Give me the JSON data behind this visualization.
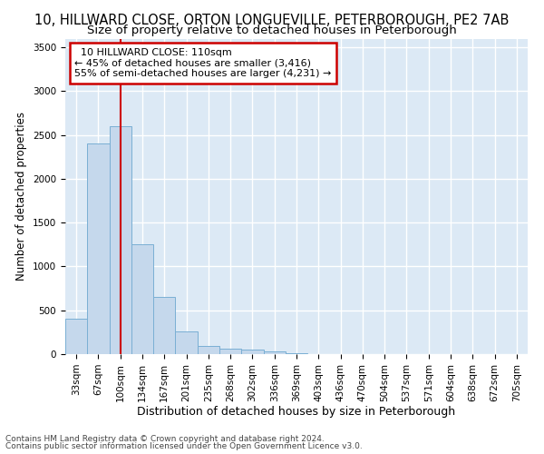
{
  "title": "10, HILLWARD CLOSE, ORTON LONGUEVILLE, PETERBOROUGH, PE2 7AB",
  "subtitle": "Size of property relative to detached houses in Peterborough",
  "xlabel": "Distribution of detached houses by size in Peterborough",
  "ylabel": "Number of detached properties",
  "categories": [
    "33sqm",
    "67sqm",
    "100sqm",
    "134sqm",
    "167sqm",
    "201sqm",
    "235sqm",
    "268sqm",
    "302sqm",
    "336sqm",
    "369sqm",
    "403sqm",
    "436sqm",
    "470sqm",
    "504sqm",
    "537sqm",
    "571sqm",
    "604sqm",
    "638sqm",
    "672sqm",
    "705sqm"
  ],
  "values": [
    400,
    2400,
    2600,
    1250,
    650,
    260,
    95,
    60,
    50,
    35,
    10,
    5,
    0,
    0,
    0,
    0,
    0,
    0,
    0,
    0,
    0
  ],
  "bar_color": "#c5d8ec",
  "bar_edge_color": "#7aafd4",
  "bar_edge_width": 0.7,
  "property_line_x": 2.0,
  "property_line_color": "#cc0000",
  "annotation_line1": "  10 HILLWARD CLOSE: 110sqm",
  "annotation_line2": "← 45% of detached houses are smaller (3,416)",
  "annotation_line3": "55% of semi-detached houses are larger (4,231) →",
  "annotation_box_color": "#ffffff",
  "annotation_box_edge": "#cc0000",
  "ylim": [
    0,
    3600
  ],
  "yticks": [
    0,
    500,
    1000,
    1500,
    2000,
    2500,
    3000,
    3500
  ],
  "background_color": "#dce9f5",
  "grid_color": "#ffffff",
  "footer1": "Contains HM Land Registry data © Crown copyright and database right 2024.",
  "footer2": "Contains public sector information licensed under the Open Government Licence v3.0.",
  "title_fontsize": 10.5,
  "subtitle_fontsize": 9.5,
  "ylabel_fontsize": 8.5,
  "xlabel_fontsize": 9,
  "tick_fontsize": 7.5,
  "footer_fontsize": 6.5
}
